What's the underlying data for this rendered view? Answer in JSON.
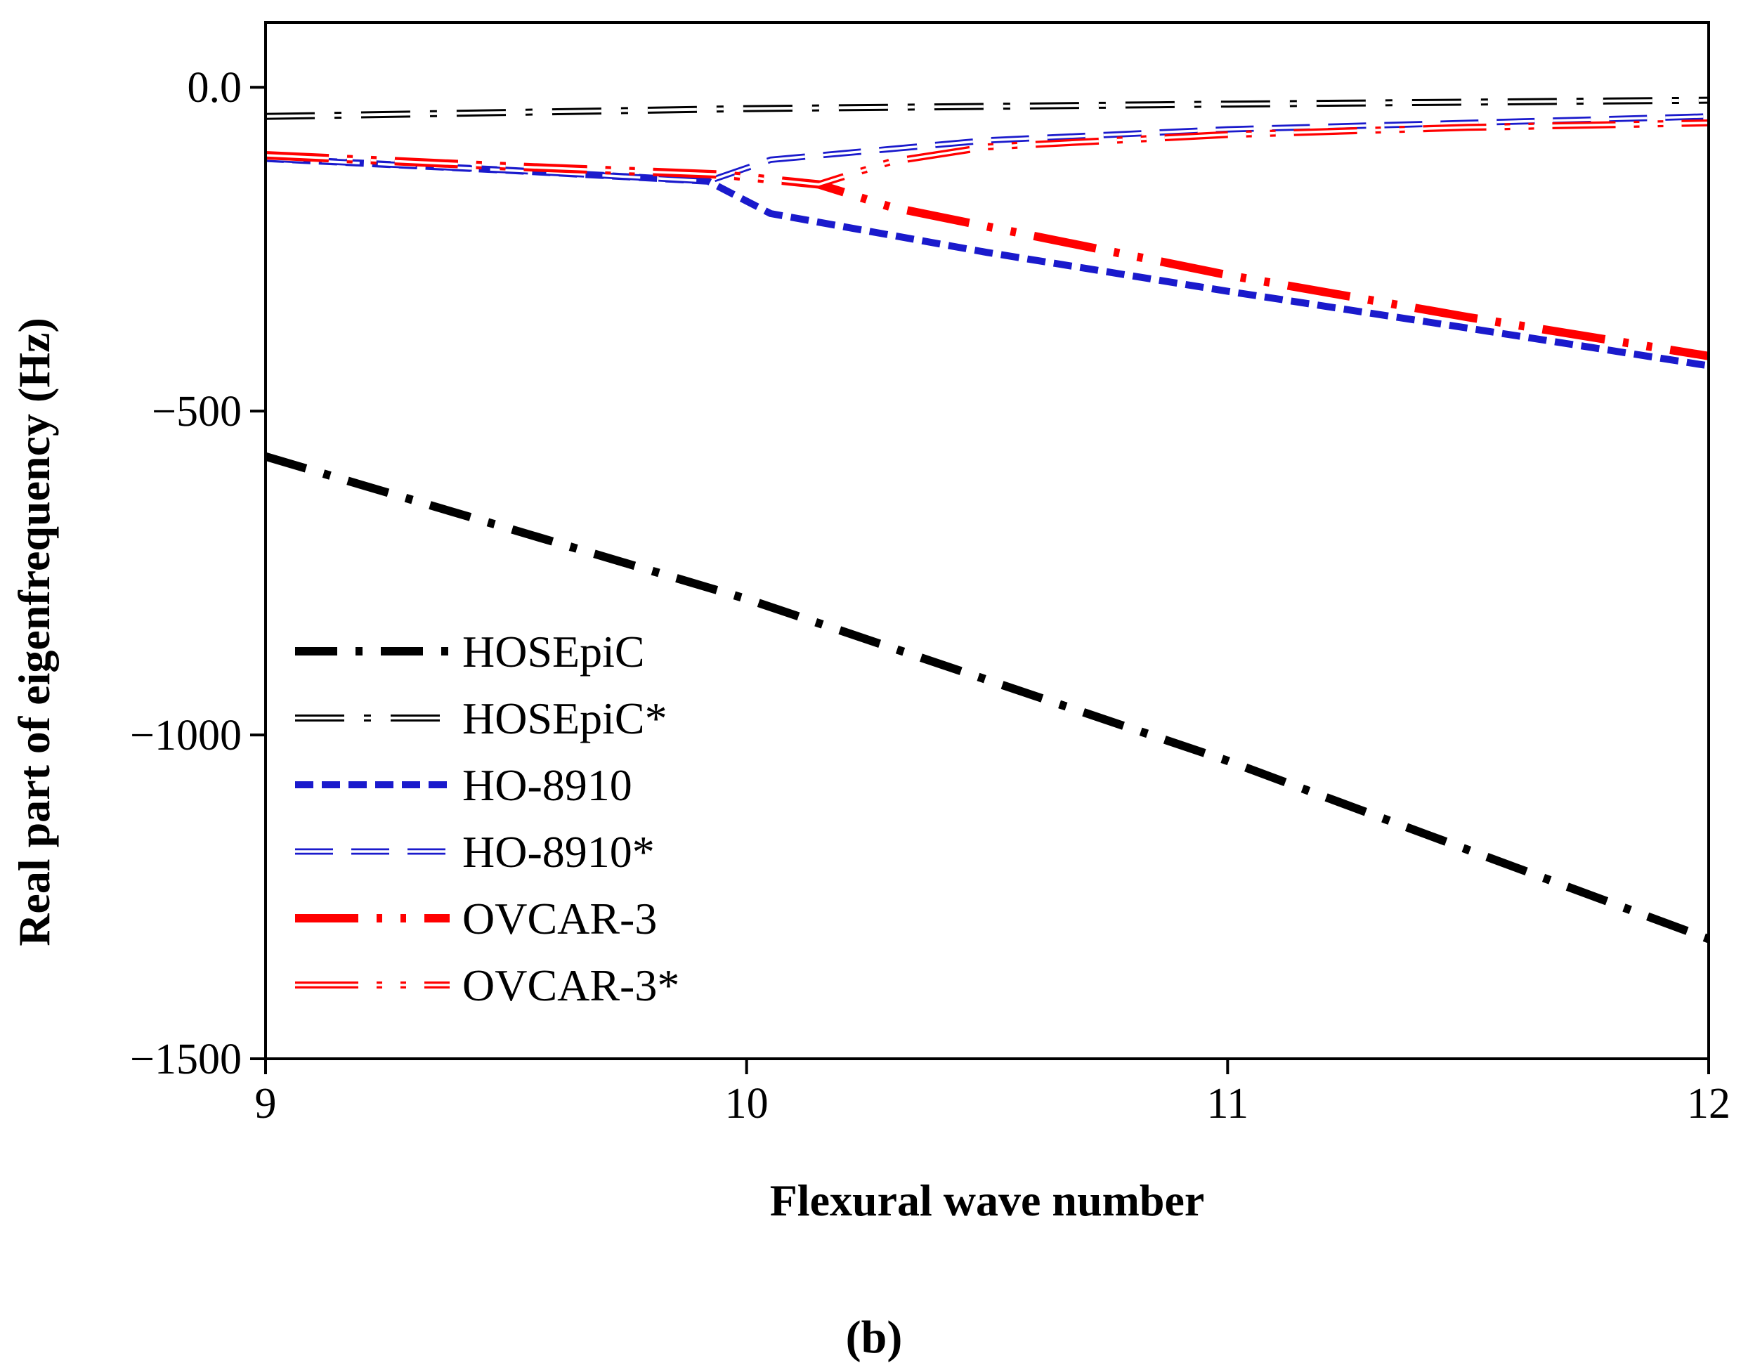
{
  "chart_data": {
    "type": "line",
    "title": "",
    "xlabel": "Flexural wave number",
    "ylabel": "Real part of eigenfrequency (Hz)",
    "xlim": [
      9,
      12
    ],
    "ylim": [
      -1500,
      100
    ],
    "x_ticks": [
      9,
      10,
      11,
      12
    ],
    "x_tick_labels": [
      "9",
      "10",
      "11",
      "12"
    ],
    "y_ticks": [
      0,
      -500,
      -1000,
      -1500
    ],
    "y_tick_labels": [
      "0.0",
      "−500",
      "−1000",
      "−1500"
    ],
    "grid": false,
    "legend_position": "lower-left",
    "panel_label": "(b)",
    "series": [
      {
        "name": "HOSEpiC",
        "color": "#000000",
        "style": "dash-dot-heavy",
        "points": [
          [
            9,
            -570
          ],
          [
            10,
            -790
          ],
          [
            11,
            -1040
          ],
          [
            12,
            -1315
          ]
        ]
      },
      {
        "name": "HOSEpiC*",
        "color": "#000000",
        "style": "dash-dot-hollow",
        "points": [
          [
            9,
            -45
          ],
          [
            10,
            -33
          ],
          [
            11,
            -26
          ],
          [
            12,
            -20
          ]
        ]
      },
      {
        "name": "HO-8910",
        "color": "#1a1acc",
        "style": "short-dash-heavy",
        "points": [
          [
            9,
            -110
          ],
          [
            9.5,
            -128
          ],
          [
            9.92,
            -145
          ],
          [
            10.05,
            -195
          ],
          [
            10.5,
            -255
          ],
          [
            11,
            -315
          ],
          [
            11.5,
            -372
          ],
          [
            12,
            -430
          ]
        ]
      },
      {
        "name": "HO-8910*",
        "color": "#1a1acc",
        "style": "long-dash-hollow",
        "points": [
          [
            9,
            -110
          ],
          [
            9.5,
            -128
          ],
          [
            9.92,
            -145
          ],
          [
            10.05,
            -112
          ],
          [
            10.5,
            -82
          ],
          [
            11,
            -65
          ],
          [
            11.5,
            -55
          ],
          [
            12,
            -45
          ]
        ]
      },
      {
        "name": "OVCAR-3",
        "color": "#ff0000",
        "style": "dash-dot-dot-heavy",
        "points": [
          [
            9,
            -105
          ],
          [
            9.5,
            -122
          ],
          [
            9.95,
            -135
          ],
          [
            10.15,
            -150
          ],
          [
            10.3,
            -185
          ],
          [
            11,
            -290
          ],
          [
            11.5,
            -355
          ],
          [
            12,
            -415
          ]
        ]
      },
      {
        "name": "OVCAR-3*",
        "color": "#ff0000",
        "style": "dash-dot-dot-hollow",
        "points": [
          [
            9,
            -105
          ],
          [
            9.5,
            -122
          ],
          [
            9.95,
            -135
          ],
          [
            10.15,
            -150
          ],
          [
            10.3,
            -115
          ],
          [
            10.5,
            -92
          ],
          [
            11,
            -73
          ],
          [
            11.5,
            -62
          ],
          [
            12,
            -55
          ]
        ]
      }
    ]
  }
}
